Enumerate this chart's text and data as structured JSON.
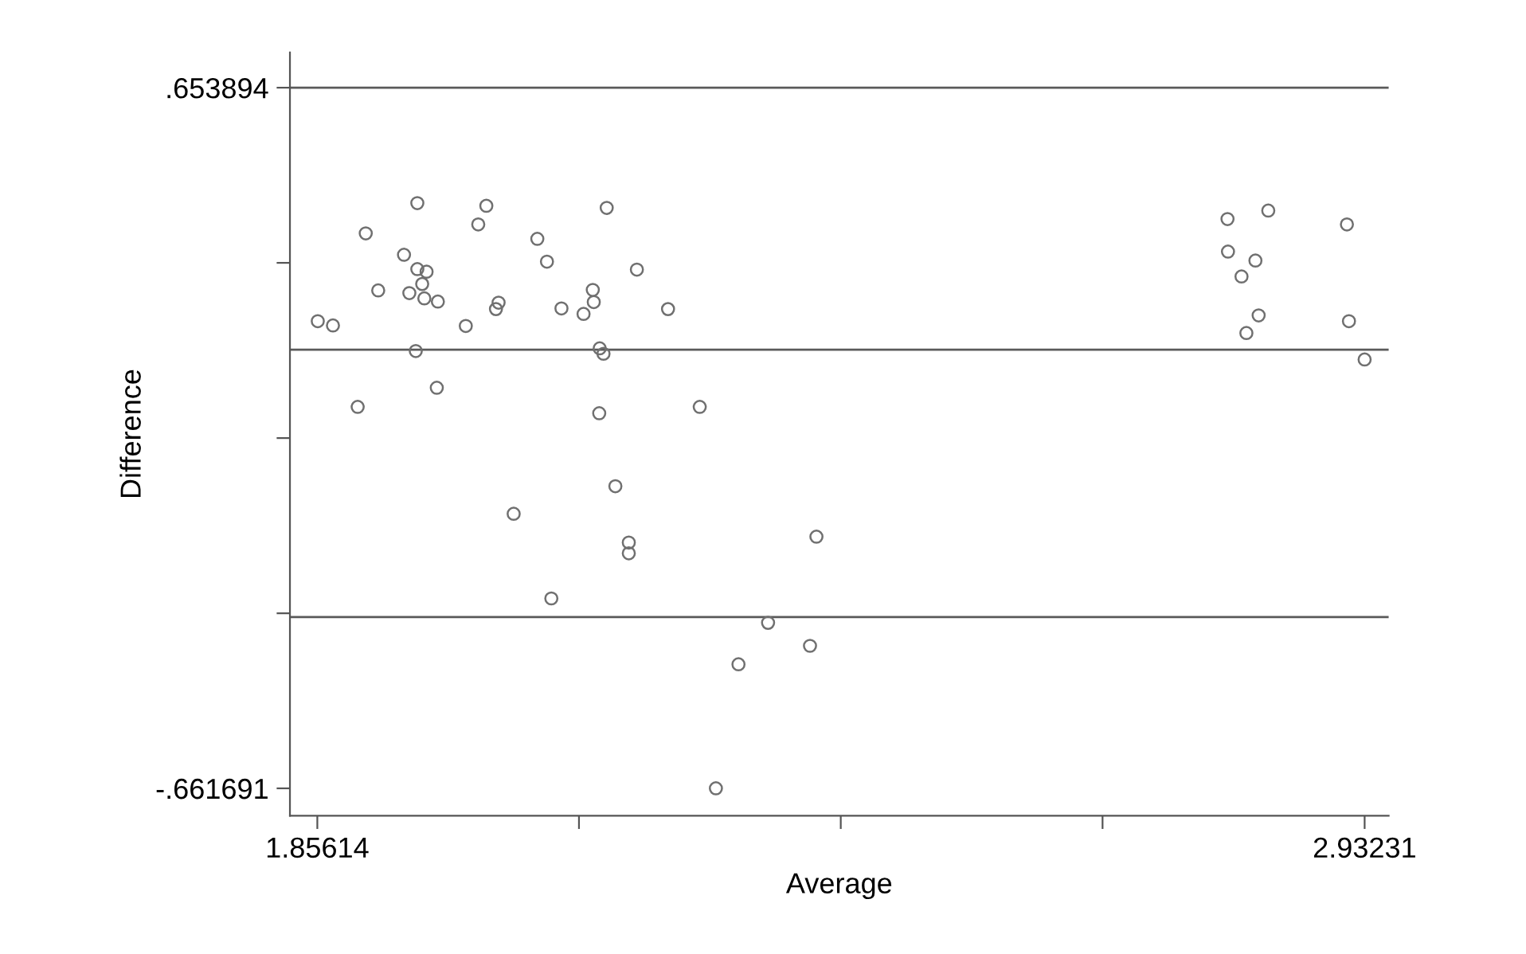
{
  "chart_data": {
    "type": "scatter",
    "xlabel": "Average",
    "ylabel": "Difference",
    "xlim": [
      1.828,
      2.957
    ],
    "ylim": [
      -0.713,
      0.72
    ],
    "xticks": [
      1.85614,
      {
        "value": 2.125,
        "label": null
      },
      {
        "value": 2.394,
        "label": null
      },
      {
        "value": 2.663,
        "label": null
      },
      2.93231
    ],
    "yticks": [
      {
        "value": -0.661691,
        "label": "-.661691"
      },
      {
        "value": -0.333,
        "label": null
      },
      {
        "value": -0.004,
        "label": null
      },
      {
        "value": 0.325,
        "label": null
      },
      {
        "value": 0.653894,
        "label": ".653894"
      }
    ],
    "grid": false,
    "marker": "circle",
    "ref_lines": [
      {
        "axis": "y",
        "value": 0.653894,
        "color": "#5a5a5a",
        "line_style": "solid"
      },
      {
        "axis": "y",
        "value": 0.162,
        "color": "#5a5a5a",
        "line_style": "solid"
      },
      {
        "axis": "y",
        "value": -0.34,
        "color": "#5a5a5a",
        "line_style": "solid"
      }
    ],
    "series": [
      {
        "color": "#707070",
        "x": [
          1.8566,
          1.8722,
          1.9059,
          1.8976,
          1.9187,
          1.9452,
          1.9589,
          1.9589,
          1.9684,
          1.9639,
          1.9507,
          1.9661,
          1.98,
          1.9573,
          1.9789,
          2.0087,
          2.0215,
          2.0298,
          2.0397,
          2.0424,
          2.0822,
          2.0921,
          2.107,
          2.1297,
          2.1392,
          2.1402,
          2.1463,
          2.1502,
          2.1458,
          2.1535,
          2.1845,
          2.2165,
          2.2491,
          2.1624,
          2.0579,
          2.1762,
          2.1762,
          2.369,
          2.0966,
          2.3193,
          2.3624,
          2.2889,
          2.2657,
          2.7914,
          2.8333,
          2.9141,
          2.7919,
          2.8201,
          2.8058,
          2.8234,
          2.8108,
          2.9162,
          2.9323
        ],
        "values": [
          0.2155,
          0.2074,
          0.3803,
          0.0545,
          0.2733,
          0.3401,
          0.4372,
          0.3132,
          0.3084,
          0.2853,
          0.2682,
          0.2583,
          0.2523,
          0.1594,
          0.0905,
          0.2065,
          0.3971,
          0.4321,
          0.2382,
          0.2502,
          0.3701,
          0.3272,
          0.2394,
          0.2292,
          0.2742,
          0.2514,
          0.1645,
          0.1543,
          0.0426,
          0.4282,
          0.3123,
          0.2382,
          0.0545,
          -0.0944,
          -0.1462,
          -0.2002,
          -0.2203,
          -0.1891,
          -0.3051,
          -0.3509,
          -0.3941,
          -0.4288,
          -0.6617,
          0.4073,
          0.4231,
          0.3971,
          0.3461,
          0.3293,
          0.2994,
          0.2263,
          0.1933,
          0.2155,
          0.1435
        ]
      }
    ]
  }
}
